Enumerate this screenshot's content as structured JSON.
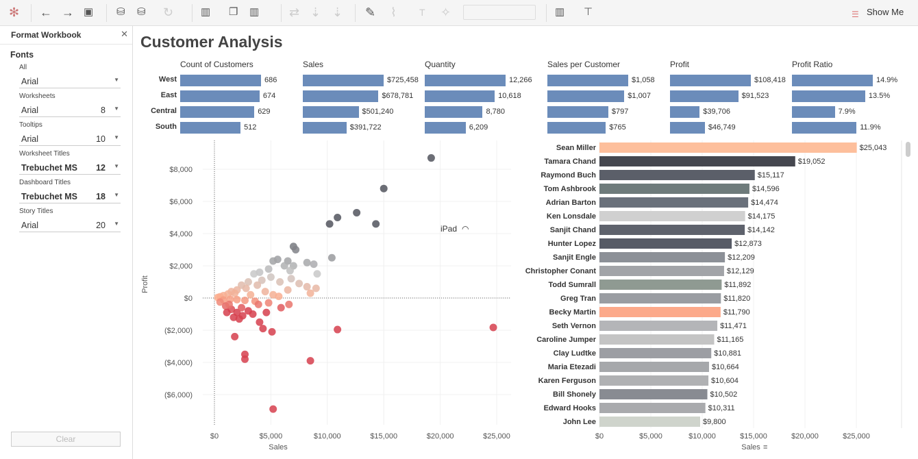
{
  "toolbar": {
    "show_me": "Show Me",
    "icons": [
      "tableau-logo-icon",
      "back-icon",
      "forward-icon",
      "save-icon",
      "new-datasource-icon",
      "pause-updates-icon",
      "refresh-icon",
      "new-worksheet-icon",
      "duplicate-sheet-icon",
      "clear-sheet-icon",
      "swap-icon",
      "sort-asc-icon",
      "sort-desc-icon",
      "highlight-icon",
      "attach-icon",
      "label-icon",
      "fix-axes-icon",
      "show-me-icon",
      "presentation-icon"
    ]
  },
  "panel": {
    "title": "Format Workbook",
    "section": "Fonts",
    "clear": "Clear",
    "groups": [
      {
        "label": "All",
        "font": "Arial",
        "size": ""
      },
      {
        "label": "Worksheets",
        "font": "Arial",
        "size": "8"
      },
      {
        "label": "Tooltips",
        "font": "Arial",
        "size": "10"
      },
      {
        "label": "Worksheet Titles",
        "font": "Trebuchet MS",
        "size": "12"
      },
      {
        "label": "Dashboard Titles",
        "font": "Trebuchet MS",
        "size": "18"
      },
      {
        "label": "Story Titles",
        "font": "Arial",
        "size": "20"
      }
    ]
  },
  "dashboard": {
    "title": "Customer Analysis",
    "device_label": "iPad"
  },
  "kpi": {
    "regions": [
      "West",
      "East",
      "Central",
      "South"
    ],
    "bar_color": "#6b8cba",
    "columns": [
      {
        "title": "Count of Customers",
        "values": [
          686,
          674,
          629,
          512
        ],
        "labels": [
          "686",
          "674",
          "629",
          "512"
        ],
        "max": 686
      },
      {
        "title": "Sales",
        "values": [
          725458,
          678781,
          501240,
          391722
        ],
        "labels": [
          "$725,458",
          "$678,781",
          "$501,240",
          "$391,722"
        ],
        "max": 725458
      },
      {
        "title": "Quantity",
        "values": [
          12266,
          10618,
          8780,
          6209
        ],
        "labels": [
          "12,266",
          "10,618",
          "8,780",
          "6,209"
        ],
        "max": 12266
      },
      {
        "title": "Sales per Customer",
        "values": [
          1058,
          1007,
          797,
          765
        ],
        "labels": [
          "$1,058",
          "$1,007",
          "$797",
          "$765"
        ],
        "max": 1058
      },
      {
        "title": "Profit",
        "values": [
          108418,
          91523,
          39706,
          46749
        ],
        "labels": [
          "$108,418",
          "$91,523",
          "$39,706",
          "$46,749"
        ],
        "max": 108418
      },
      {
        "title": "Profit Ratio",
        "values": [
          14.9,
          13.5,
          7.9,
          11.9
        ],
        "labels": [
          "14.9%",
          "13.5%",
          "7.9%",
          "11.9%"
        ],
        "max": 14.9
      }
    ]
  },
  "chart_data": [
    {
      "type": "scatter",
      "title": "",
      "xlabel": "Sales",
      "ylabel": "Profit",
      "xlim": [
        0,
        25000
      ],
      "ylim": [
        -7500,
        9000
      ],
      "xticks": [
        "$0",
        "$5,000",
        "$10,000",
        "$15,000",
        "$20,000",
        "$25,000"
      ],
      "xtick_values": [
        0,
        5000,
        10000,
        15000,
        20000,
        25000
      ],
      "yticks": [
        "$8,000",
        "$6,000",
        "$4,000",
        "$2,000",
        "$0",
        "($2,000)",
        "($4,000)",
        "($6,000)"
      ],
      "ytick_values": [
        8000,
        6000,
        4000,
        2000,
        0,
        -2000,
        -4000,
        -6000
      ],
      "colors": {
        "neg": "#d6404e",
        "low": "#fcac8c",
        "mid": "#c8c8c8",
        "high": "#52555e"
      },
      "points": [
        [
          19200,
          8700
        ],
        [
          15000,
          6800
        ],
        [
          12600,
          5300
        ],
        [
          10900,
          5000
        ],
        [
          10200,
          4600
        ],
        [
          14300,
          4600
        ],
        [
          7000,
          3200
        ],
        [
          7200,
          3000
        ],
        [
          10400,
          2500
        ],
        [
          6500,
          2300
        ],
        [
          5600,
          2400
        ],
        [
          5200,
          2300
        ],
        [
          6200,
          2000
        ],
        [
          7000,
          2000
        ],
        [
          8200,
          2200
        ],
        [
          8800,
          2100
        ],
        [
          9100,
          1500
        ],
        [
          6700,
          1700
        ],
        [
          4800,
          1800
        ],
        [
          4000,
          1600
        ],
        [
          3500,
          1500
        ],
        [
          5000,
          1300
        ],
        [
          5800,
          1000
        ],
        [
          6800,
          1200
        ],
        [
          7500,
          900
        ],
        [
          8200,
          700
        ],
        [
          9000,
          600
        ],
        [
          8500,
          300
        ],
        [
          6500,
          500
        ],
        [
          4200,
          1100
        ],
        [
          3800,
          800
        ],
        [
          3000,
          1000
        ],
        [
          2800,
          600
        ],
        [
          2400,
          800
        ],
        [
          2000,
          500
        ],
        [
          1500,
          400
        ],
        [
          1200,
          250
        ],
        [
          800,
          150
        ],
        [
          500,
          80
        ],
        [
          300,
          30
        ],
        [
          1800,
          300
        ],
        [
          3200,
          200
        ],
        [
          4500,
          400
        ],
        [
          5200,
          200
        ],
        [
          5700,
          100
        ],
        [
          4800,
          -300
        ],
        [
          3600,
          -200
        ],
        [
          2700,
          -150
        ],
        [
          2000,
          -100
        ],
        [
          1400,
          -80
        ],
        [
          800,
          -120
        ],
        [
          500,
          -250
        ],
        [
          1000,
          -500
        ],
        [
          1500,
          -700
        ],
        [
          2000,
          -900
        ],
        [
          2500,
          -1100
        ],
        [
          3000,
          -800
        ],
        [
          3400,
          -1000
        ],
        [
          2200,
          -1300
        ],
        [
          1700,
          -1200
        ],
        [
          4000,
          -1500
        ],
        [
          4600,
          -900
        ],
        [
          5100,
          -2100
        ],
        [
          4300,
          -1900
        ],
        [
          1800,
          -2400
        ],
        [
          2700,
          -3500
        ],
        [
          2700,
          -3800
        ],
        [
          8500,
          -3900
        ],
        [
          5200,
          -6900
        ],
        [
          10900,
          -1960
        ],
        [
          24700,
          -1830
        ],
        [
          6600,
          -400
        ],
        [
          5900,
          -600
        ],
        [
          3900,
          -400
        ],
        [
          2400,
          -600
        ],
        [
          1100,
          -900
        ],
        [
          1300,
          -400
        ]
      ]
    },
    {
      "type": "bar",
      "orientation": "horizontal",
      "xlabel": "Sales",
      "xlim": [
        0,
        30000
      ],
      "xticks": [
        "$0",
        "$5,000",
        "$10,000",
        "$15,000",
        "$20,000",
        "$25,000"
      ],
      "xtick_values": [
        0,
        5000,
        10000,
        15000,
        20000,
        25000
      ],
      "bars": [
        {
          "name": "Sean Miller",
          "value": 25043,
          "label": "$25,043",
          "color": "#fdbf9c"
        },
        {
          "name": "Tamara Chand",
          "value": 19052,
          "label": "$19,052",
          "color": "#45474f"
        },
        {
          "name": "Raymond Buch",
          "value": 15117,
          "label": "$15,117",
          "color": "#5b5f69"
        },
        {
          "name": "Tom Ashbrook",
          "value": 14596,
          "label": "$14,596",
          "color": "#6e7b7b"
        },
        {
          "name": "Adrian Barton",
          "value": 14474,
          "label": "$14,474",
          "color": "#6a717b"
        },
        {
          "name": "Ken Lonsdale",
          "value": 14175,
          "label": "$14,175",
          "color": "#d0d0d0"
        },
        {
          "name": "Sanjit Chand",
          "value": 14142,
          "label": "$14,142",
          "color": "#5e626c"
        },
        {
          "name": "Hunter Lopez",
          "value": 12873,
          "label": "$12,873",
          "color": "#575b66"
        },
        {
          "name": "Sanjit Engle",
          "value": 12209,
          "label": "$12,209",
          "color": "#8c9097"
        },
        {
          "name": "Christopher Conant",
          "value": 12129,
          "label": "$12,129",
          "color": "#a2a4a8"
        },
        {
          "name": "Todd Sumrall",
          "value": 11892,
          "label": "$11,892",
          "color": "#8f9a92"
        },
        {
          "name": "Greg Tran",
          "value": 11820,
          "label": "$11,820",
          "color": "#9a9da2"
        },
        {
          "name": "Becky Martin",
          "value": 11790,
          "label": "$11,790",
          "color": "#fca98a"
        },
        {
          "name": "Seth Vernon",
          "value": 11471,
          "label": "$11,471",
          "color": "#b4b5b8"
        },
        {
          "name": "Caroline Jumper",
          "value": 11165,
          "label": "$11,165",
          "color": "#c4c4c4"
        },
        {
          "name": "Clay Ludtke",
          "value": 10881,
          "label": "$10,881",
          "color": "#9c9ea3"
        },
        {
          "name": "Maria Etezadi",
          "value": 10664,
          "label": "$10,664",
          "color": "#a6a8ab"
        },
        {
          "name": "Karen Ferguson",
          "value": 10604,
          "label": "$10,604",
          "color": "#b0b1b3"
        },
        {
          "name": "Bill Shonely",
          "value": 10502,
          "label": "$10,502",
          "color": "#888b92"
        },
        {
          "name": "Edward Hooks",
          "value": 10311,
          "label": "$10,311",
          "color": "#a9aaad"
        },
        {
          "name": "John Lee",
          "value": 9800,
          "label": "$9,800",
          "color": "#cfd4cc"
        }
      ]
    }
  ]
}
